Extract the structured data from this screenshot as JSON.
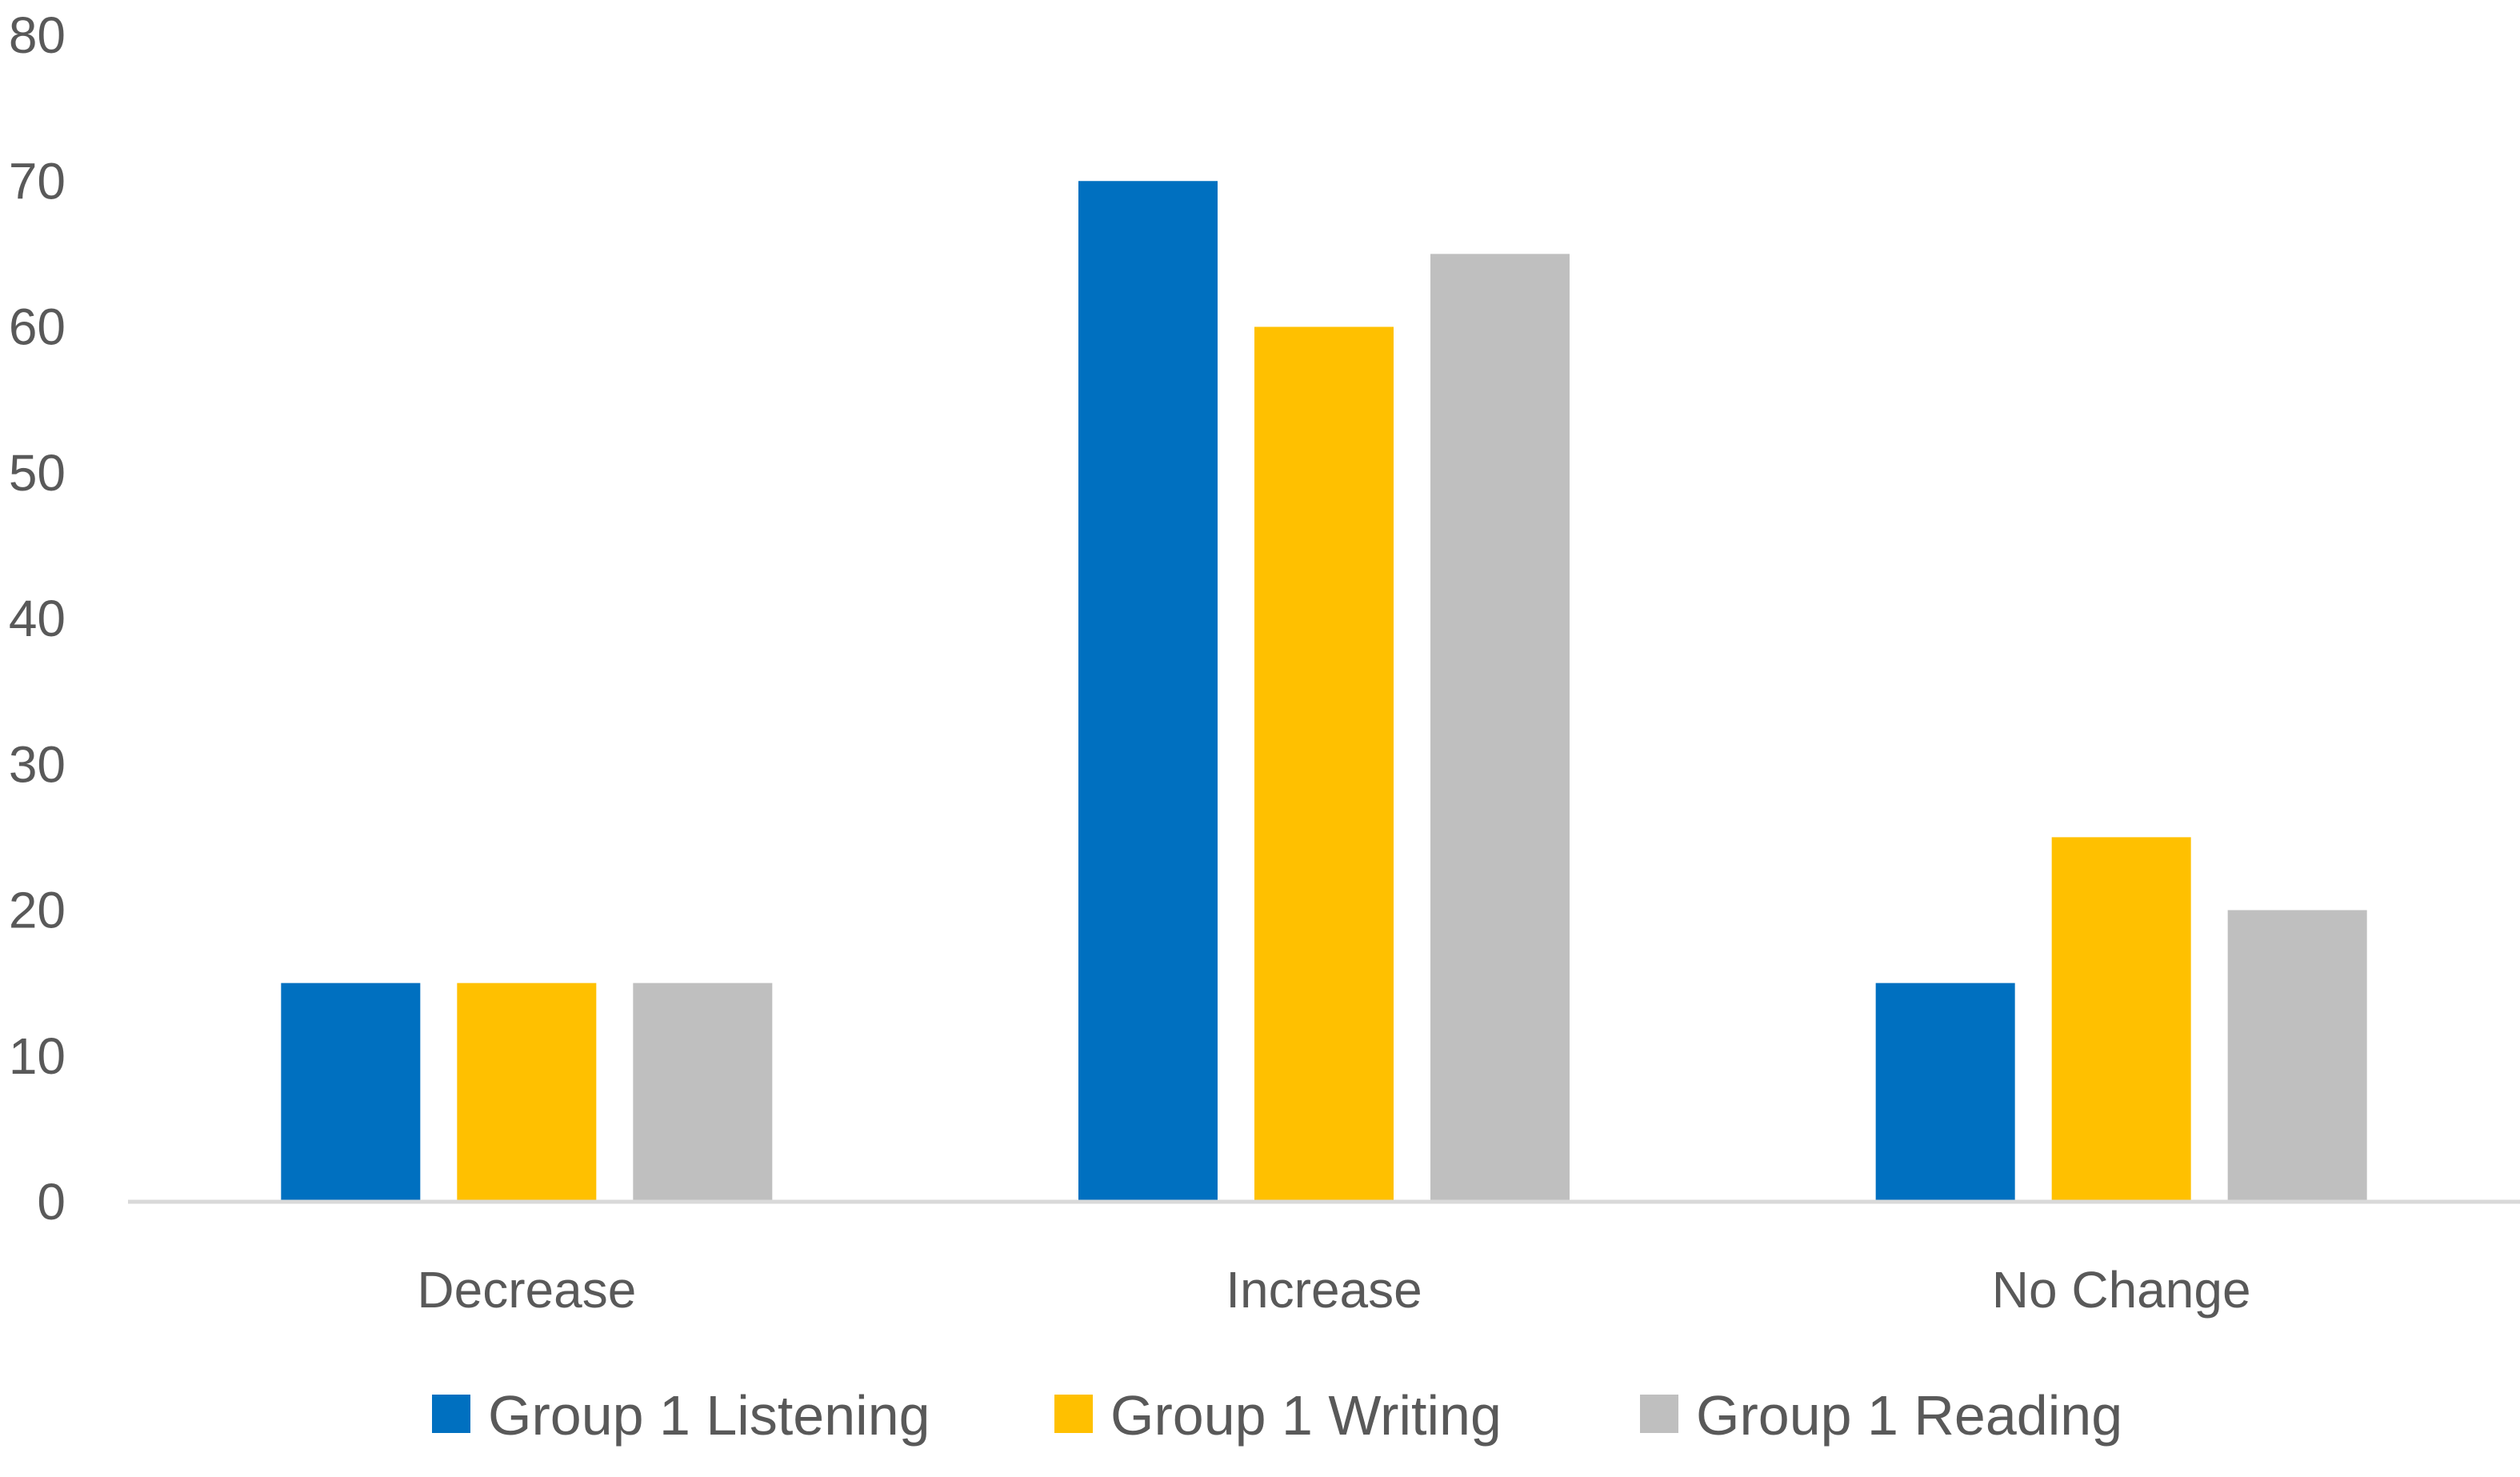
{
  "chart_data": {
    "type": "bar",
    "title": "",
    "xlabel": "",
    "ylabel": "",
    "categories": [
      "Decrease",
      "Increase",
      "No Change"
    ],
    "series": [
      {
        "name": "Group 1 Listening",
        "color": "#0070C0",
        "values": [
          15,
          70,
          15
        ]
      },
      {
        "name": "Group 1 Writing",
        "color": "#FFC000",
        "values": [
          15,
          60,
          25
        ]
      },
      {
        "name": "Group 1 Reading",
        "color": "#BFBFBF",
        "values": [
          15,
          65,
          20
        ]
      }
    ],
    "ylim": [
      0,
      80
    ],
    "yticks": [
      "0",
      "10",
      "20",
      "30",
      "40",
      "50",
      "60",
      "70",
      "80"
    ],
    "grid": false,
    "legend_position": "bottom",
    "axis_color": "#D9D9D9",
    "text_color": "#595959"
  }
}
